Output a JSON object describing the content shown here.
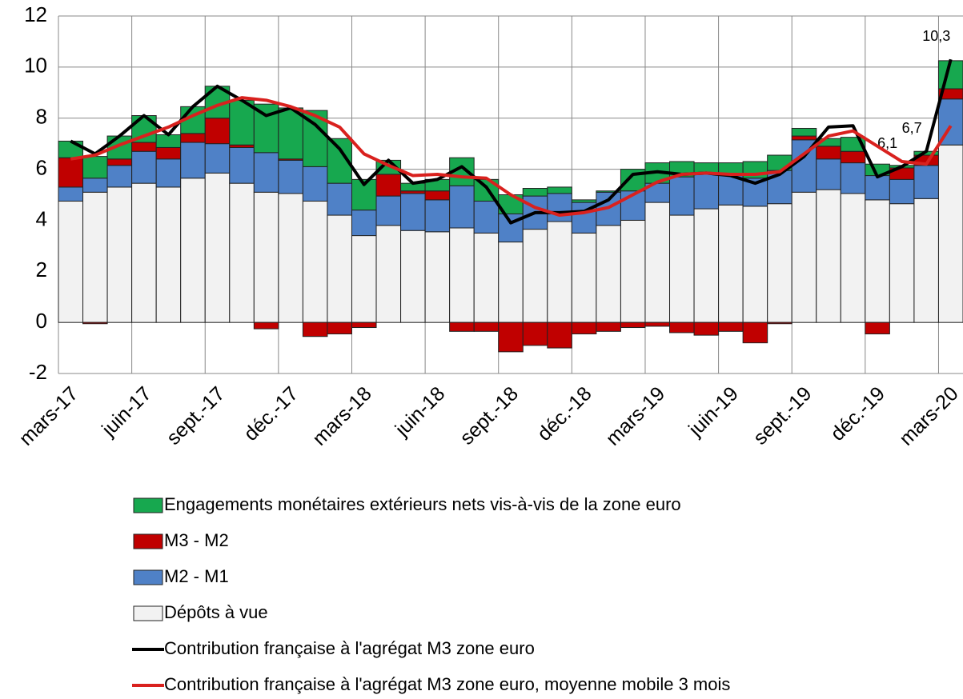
{
  "chart_data": {
    "type": "stacked-bar-line",
    "categories": [
      "mars-17",
      null,
      null,
      "juin-17",
      null,
      null,
      "sept.-17",
      null,
      null,
      "déc.-17",
      null,
      null,
      "mars-18",
      null,
      null,
      "juin-18",
      null,
      null,
      "sept.-18",
      null,
      null,
      "déc.-18",
      null,
      null,
      "mars-19",
      null,
      null,
      "juin-19",
      null,
      null,
      "sept.-19",
      null,
      null,
      "déc.-19",
      null,
      null,
      "mars-20"
    ],
    "ylim": [
      -2,
      12
    ],
    "yticks": [
      -2,
      0,
      2,
      4,
      6,
      8,
      10,
      12
    ],
    "grid": true,
    "series": [
      {
        "name": "Engagements monétaires extérieurs nets vis-à-vis de la zone euro",
        "kind": "bar",
        "color": "#17a84f",
        "values": [
          0.65,
          0.85,
          0.9,
          1.05,
          0.5,
          1.05,
          1.25,
          1.75,
          1.9,
          2.0,
          2.2,
          1.75,
          1.2,
          0.55,
          0.3,
          0.45,
          1.1,
          0.85,
          0.75,
          0.3,
          0.25,
          0.1,
          0.05,
          0.85,
          0.8,
          0.6,
          0.45,
          0.5,
          0.65,
          0.6,
          0.3,
          0.3,
          0.55,
          0.45,
          0.1,
          0.15,
          1.1
        ]
      },
      {
        "name": "M3 - M2",
        "kind": "bar",
        "color": "#c00000",
        "values": [
          1.15,
          -0.05,
          0.25,
          0.35,
          0.45,
          0.35,
          1.0,
          0.1,
          -0.25,
          0.05,
          -0.55,
          -0.45,
          -0.2,
          0.85,
          0.1,
          0.35,
          -0.35,
          -0.35,
          -1.15,
          -0.9,
          -1.0,
          -0.45,
          -0.35,
          -0.2,
          -0.15,
          -0.4,
          -0.5,
          -0.35,
          -0.8,
          -0.05,
          0.15,
          0.5,
          0.45,
          -0.45,
          0.45,
          0.4,
          0.4
        ]
      },
      {
        "name": "M2 - M1",
        "kind": "bar",
        "color": "#4f81c7",
        "values": [
          0.55,
          0.55,
          0.85,
          1.25,
          1.1,
          1.4,
          1.15,
          1.4,
          1.55,
          1.3,
          1.35,
          1.25,
          1.0,
          1.15,
          1.45,
          1.25,
          1.65,
          1.25,
          1.1,
          1.3,
          1.1,
          1.2,
          1.3,
          1.15,
          0.75,
          1.5,
          1.35,
          1.15,
          1.1,
          1.3,
          2.05,
          1.2,
          1.2,
          0.95,
          0.95,
          1.3,
          1.8
        ]
      },
      {
        "name": "Dépôts à vue",
        "kind": "bar",
        "color": "#f2f2f2",
        "values": [
          4.75,
          5.1,
          5.3,
          5.45,
          5.3,
          5.65,
          5.85,
          5.45,
          5.1,
          5.05,
          4.75,
          4.2,
          3.4,
          3.8,
          3.6,
          3.55,
          3.7,
          3.5,
          3.15,
          3.65,
          3.95,
          3.5,
          3.8,
          4.0,
          4.7,
          4.2,
          4.45,
          4.6,
          4.55,
          4.65,
          5.1,
          5.2,
          5.05,
          4.8,
          4.65,
          4.85,
          6.95
        ]
      },
      {
        "name": "Contribution française à l'agrégat M3 zone euro",
        "kind": "line",
        "color": "#000000",
        "values": [
          7.1,
          6.6,
          7.3,
          8.1,
          7.35,
          8.45,
          9.25,
          8.7,
          8.1,
          8.4,
          7.75,
          6.8,
          5.4,
          6.35,
          5.45,
          5.6,
          6.1,
          5.3,
          3.9,
          4.3,
          4.3,
          4.35,
          4.8,
          5.8,
          5.9,
          5.8,
          5.85,
          5.75,
          5.45,
          5.8,
          6.5,
          7.65,
          7.7,
          5.7,
          6.1,
          6.7,
          10.3
        ],
        "value_labels": [
          null,
          null,
          null,
          null,
          null,
          null,
          null,
          null,
          null,
          null,
          null,
          null,
          null,
          null,
          null,
          null,
          null,
          null,
          null,
          null,
          null,
          null,
          null,
          null,
          null,
          null,
          null,
          null,
          null,
          null,
          null,
          null,
          null,
          null,
          "6,1",
          "6,7",
          "10,3"
        ]
      },
      {
        "name": "Contribution française à l'agrégat M3 zone euro, moyenne mobile 3 mois",
        "kind": "line",
        "color": "#d9211e",
        "values": [
          6.4,
          6.55,
          6.95,
          7.3,
          7.65,
          8.1,
          8.5,
          8.8,
          8.7,
          8.45,
          8.1,
          7.65,
          6.6,
          6.15,
          5.75,
          5.8,
          5.7,
          5.65,
          5.0,
          4.5,
          4.2,
          4.3,
          4.5,
          5.0,
          5.5,
          5.8,
          5.85,
          5.8,
          5.8,
          5.9,
          6.6,
          7.3,
          7.5,
          6.9,
          6.3,
          6.2,
          7.7
        ]
      }
    ]
  }
}
